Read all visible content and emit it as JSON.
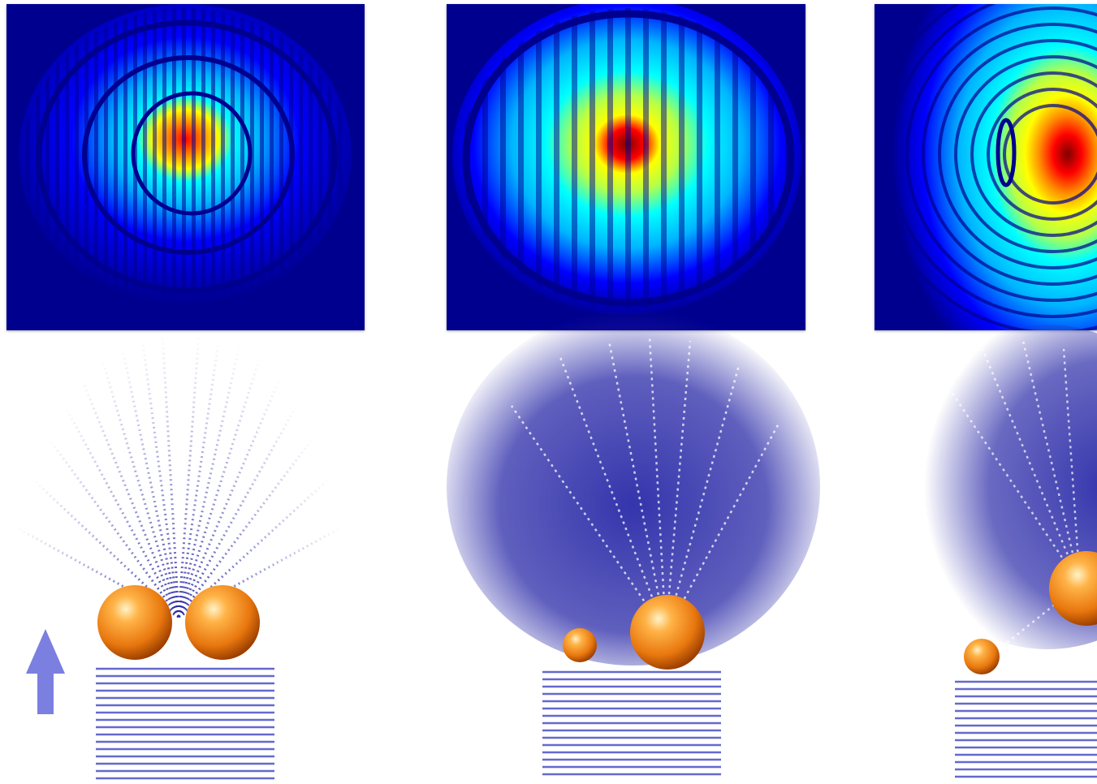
{
  "figure": {
    "panels": [
      {
        "id": "panel-1",
        "description_key": "symmetric-dimer",
        "particles": [
          {
            "size": "large"
          },
          {
            "size": "large"
          }
        ],
        "heatmap_pattern": "concentric-rings-centered",
        "incident_arrow": true
      },
      {
        "id": "panel-2",
        "description_key": "asymmetric-dimer",
        "particles": [
          {
            "size": "small"
          },
          {
            "size": "large"
          }
        ],
        "heatmap_pattern": "centered-hotspot",
        "incident_arrow": false
      },
      {
        "id": "panel-3",
        "description_key": "offset-asymmetric-dimer",
        "particles": [
          {
            "size": "small"
          },
          {
            "size": "large"
          }
        ],
        "heatmap_pattern": "shifted-hotspot-right",
        "incident_arrow": false
      }
    ],
    "colormap": [
      "#00008f",
      "#0000ff",
      "#00b4ff",
      "#00ffff",
      "#b4ff4a",
      "#ffff00",
      "#ff8c00",
      "#ff0000",
      "#7f0000"
    ],
    "particle_color": "#f08a1a",
    "wave_color": "#2a2aa8",
    "arrow_color": "#7b7fe0"
  }
}
